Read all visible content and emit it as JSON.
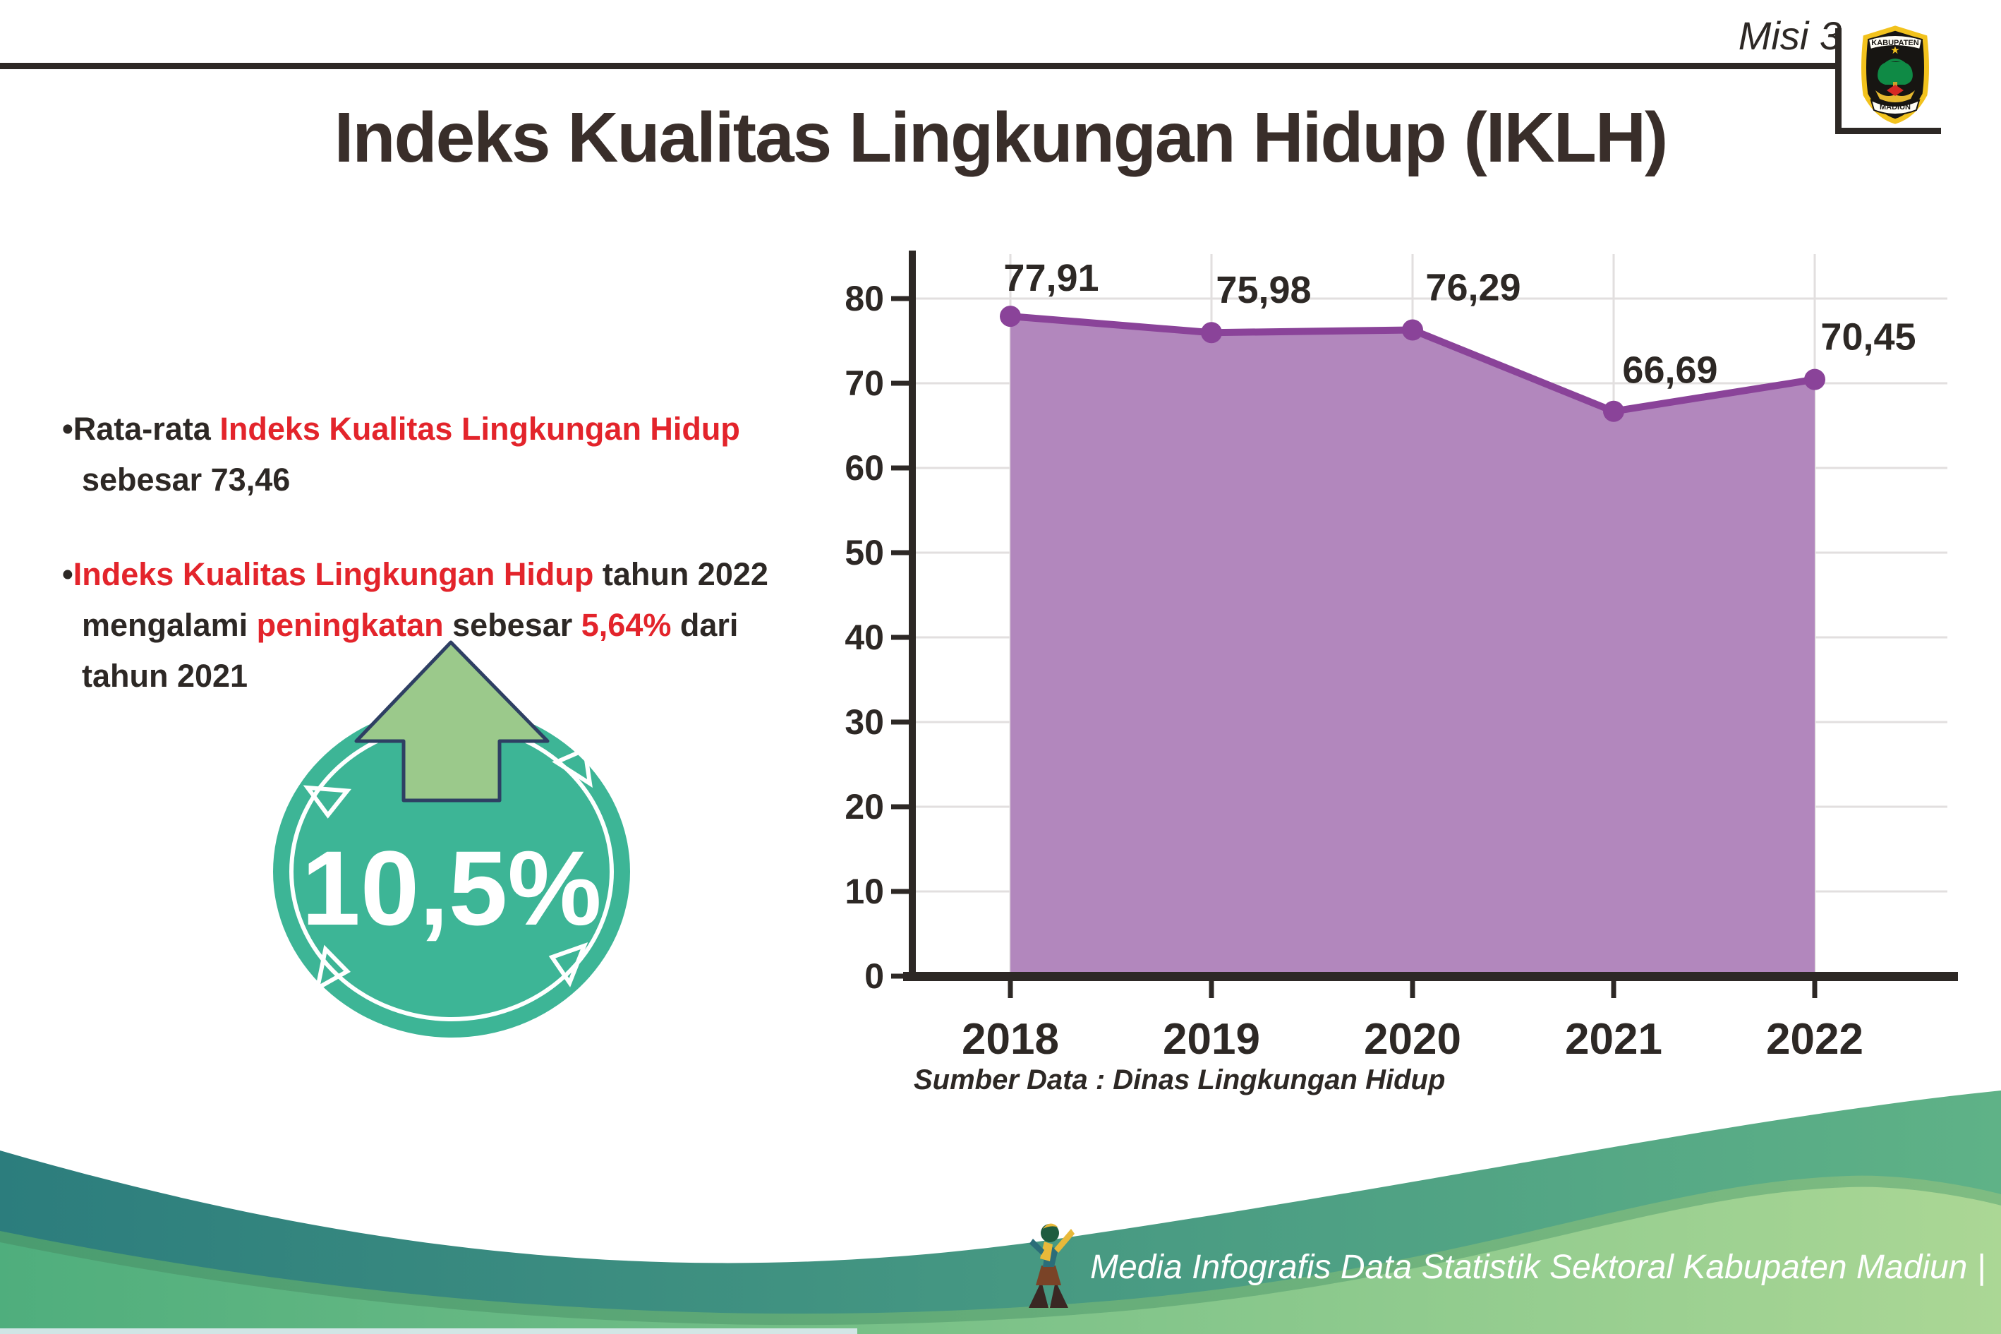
{
  "header": {
    "misi": "Misi 3",
    "logo": {
      "top": "KABUPATEN",
      "bottom": "MADIUN"
    }
  },
  "title": "Indeks Kualitas Lingkungan Hidup (IKLH)",
  "insights": {
    "bullet1": [
      {
        "text": "•Rata-rata ",
        "color": "dark"
      },
      {
        "text": "Indeks Kualitas Lingkungan Hidup",
        "color": "red"
      },
      {
        "text": " sebesar 73,46",
        "color": "dark"
      }
    ],
    "bullet2": [
      {
        "text": "•",
        "color": "dark"
      },
      {
        "text": "Indeks Kualitas Lingkungan Hidup",
        "color": "red"
      },
      {
        "text": " tahun 2022 mengalami ",
        "color": "dark"
      },
      {
        "text": "peningkatan",
        "color": "red"
      },
      {
        "text": " sebesar ",
        "color": "dark"
      },
      {
        "text": "5,64%",
        "color": "red"
      },
      {
        "text": " dari tahun 2021",
        "color": "dark"
      }
    ]
  },
  "badge": {
    "value": "10,5%",
    "direction": "up"
  },
  "chart_data": {
    "type": "area",
    "categories": [
      "2018",
      "2019",
      "2020",
      "2021",
      "2022"
    ],
    "values": [
      77.91,
      75.98,
      76.29,
      66.69,
      70.45
    ],
    "point_labels": [
      "77,91",
      "75,98",
      "76,29",
      "66,69",
      "70,45"
    ],
    "ylim": [
      0,
      85
    ],
    "yticks": [
      0,
      10,
      20,
      30,
      40,
      50,
      60,
      70,
      80
    ],
    "grid": true,
    "legend": "none",
    "area_color": "#b287bd",
    "line_color": "#8a4399",
    "marker_color": "#8a4399",
    "grid_color": "#e2dfdf",
    "axis_color": "#2d2825",
    "source": "Sumber Data : Dinas Lingkungan Hidup"
  },
  "footer": {
    "text": "Media Infografis Data Statistik Sektoral Kabupaten Madiun |"
  },
  "colors": {
    "accent_red": "#e3242b",
    "badge_teal": "#3db596",
    "badge_arrow_green": "#9bc98b",
    "badge_arrow_outline": "#2e3f63",
    "title_dark": "#392e2a"
  }
}
